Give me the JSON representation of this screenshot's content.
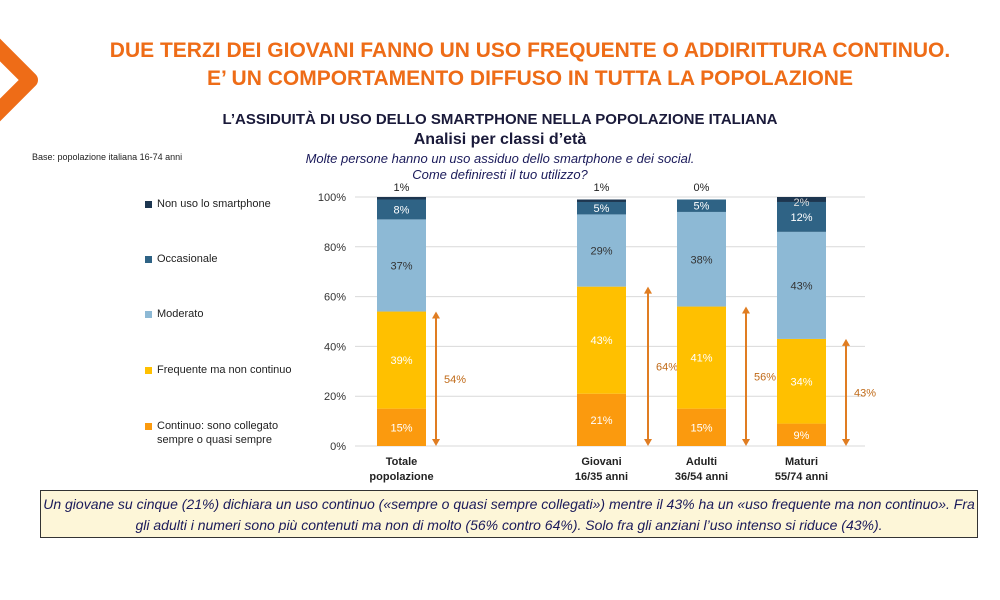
{
  "header": {
    "title_line1": "DUE TERZI DEI GIOVANI FANNO UN USO FREQUENTE O ADDIRITTURA CONTINUO.",
    "title_line2": "E’ UN COMPORTAMENTO DIFFUSO IN TUTTA LA POPOLAZIONE",
    "subtitle": "L’ASSIDUITÀ DI USO DELLO SMARTPHONE NELLA POPOLAZIONE ITALIANA",
    "subtitle2": "Analisi per classi d’età",
    "question1": "Molte persone hanno un uso assiduo dello smartphone e dei social.",
    "question2": "Come definiresti il tuo utilizzo?",
    "base": "Base: popolazione italiana 16-74 anni"
  },
  "note": "Un giovane su cinque (21%) dichiara un uso continuo («sempre o quasi sempre collegati») mentre il 43% ha un «uso frequente ma non continuo». Fra gli adulti i numeri sono più contenuti ma non di molto (56% contro 64%). Solo fra gli anziani l’uso intenso si riduce (43%).",
  "chart_data": {
    "type": "bar",
    "stacked": true,
    "categories": [
      [
        "Totale",
        "popolazione"
      ],
      [
        "Giovani",
        "16/35 anni"
      ],
      [
        "Adulti",
        "36/54 anni"
      ],
      [
        "Maturi",
        "55/74 anni"
      ]
    ],
    "ylim": [
      0,
      100
    ],
    "yticks": [
      "0%",
      "20%",
      "40%",
      "60%",
      "80%",
      "100%"
    ],
    "grid": true,
    "legend": "left",
    "series": [
      {
        "name": "Continuo: sono collegato sempre o quasi sempre",
        "color": "#fb9a0e",
        "values": [
          15,
          21,
          15,
          9
        ]
      },
      {
        "name": "Frequente ma non continuo",
        "color": "#ffc000",
        "values": [
          39,
          43,
          41,
          34
        ]
      },
      {
        "name": "Moderato",
        "color": "#8db9d5",
        "values": [
          37,
          29,
          38,
          43
        ]
      },
      {
        "name": "Occasionale",
        "color": "#2f6385",
        "values": [
          8,
          5,
          5,
          12
        ]
      },
      {
        "name": "Non uso lo smartphone",
        "color": "#1d3650",
        "values": [
          1,
          1,
          0,
          2
        ]
      }
    ],
    "totals": {
      "label_color": "#c06a18",
      "arrow_color": "#e07d22",
      "values": [
        54,
        64,
        56,
        43
      ]
    }
  }
}
